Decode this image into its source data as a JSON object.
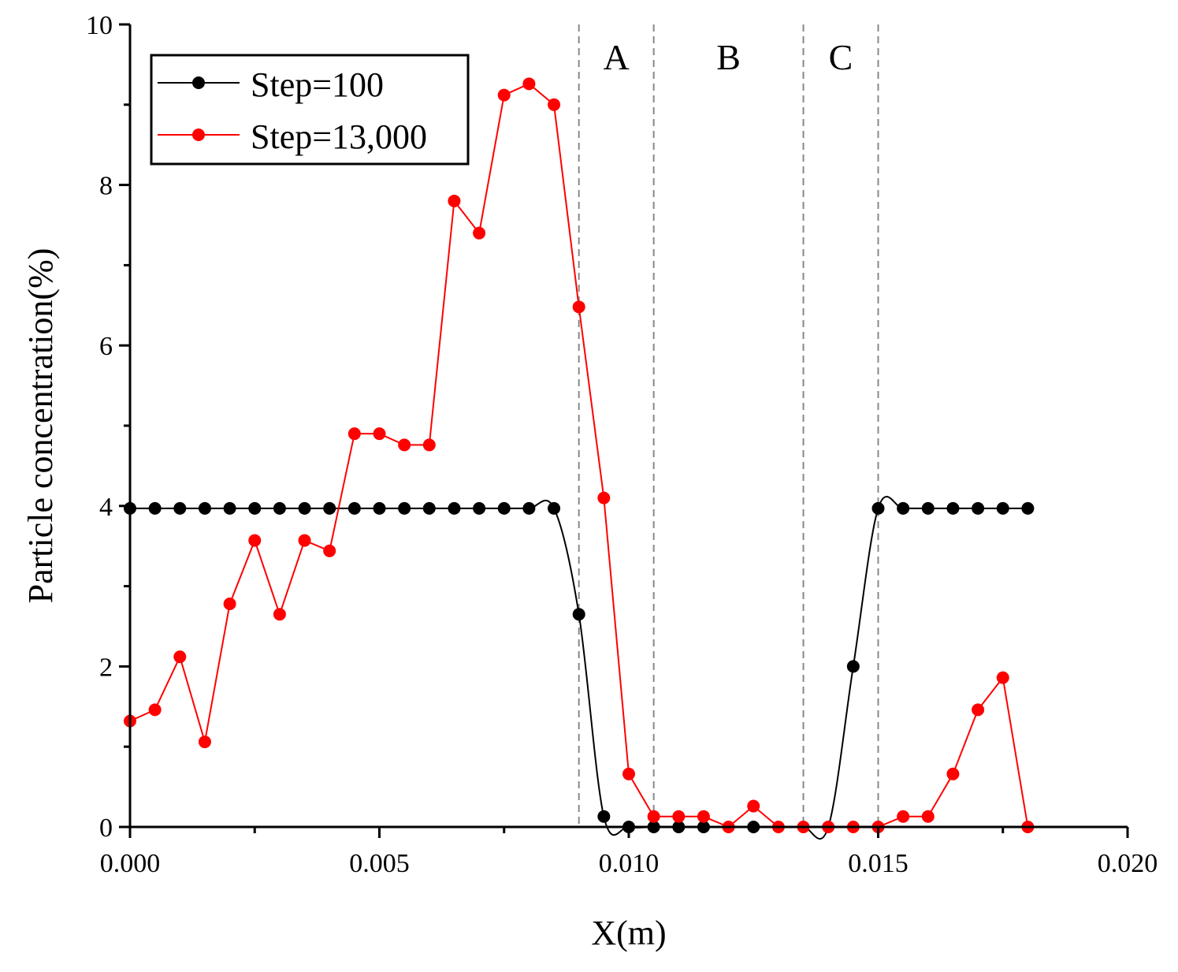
{
  "chart_data": {
    "type": "line",
    "xlabel": "X(m)",
    "ylabel": "Particle concentration(%)",
    "xlim": [
      0,
      0.02
    ],
    "ylim": [
      0,
      10
    ],
    "x_ticks": [
      {
        "value": 0.0,
        "label": "0.000"
      },
      {
        "value": 0.005,
        "label": "0.005"
      },
      {
        "value": 0.01,
        "label": "0.010"
      },
      {
        "value": 0.015,
        "label": "0.015"
      },
      {
        "value": 0.02,
        "label": "0.020"
      }
    ],
    "y_ticks": [
      {
        "value": 0,
        "label": "0"
      },
      {
        "value": 2,
        "label": "2"
      },
      {
        "value": 4,
        "label": "4"
      },
      {
        "value": 6,
        "label": "6"
      },
      {
        "value": 8,
        "label": "8"
      },
      {
        "value": 10,
        "label": "10"
      }
    ],
    "legend_position": "top-left",
    "regions": [
      {
        "label": "A",
        "start": 0.009,
        "end": 0.0105
      },
      {
        "label": "B",
        "start": 0.0105,
        "end": 0.0135
      },
      {
        "label": "C",
        "start": 0.0135,
        "end": 0.015
      }
    ],
    "series": [
      {
        "name": "Step=100",
        "color": "#000000",
        "smooth": true,
        "x": [
          0.0,
          0.0005,
          0.001,
          0.0015,
          0.002,
          0.0025,
          0.003,
          0.0035,
          0.004,
          0.0045,
          0.005,
          0.0055,
          0.006,
          0.0065,
          0.007,
          0.0075,
          0.008,
          0.0085,
          0.009,
          0.0095,
          0.01,
          0.0105,
          0.011,
          0.0115,
          0.012,
          0.0125,
          0.013,
          0.0135,
          0.014,
          0.0145,
          0.015,
          0.0155,
          0.016,
          0.0165,
          0.017,
          0.0175,
          0.018
        ],
        "y": [
          3.97,
          3.97,
          3.97,
          3.97,
          3.97,
          3.97,
          3.97,
          3.97,
          3.97,
          3.97,
          3.97,
          3.97,
          3.97,
          3.97,
          3.97,
          3.97,
          3.97,
          3.97,
          2.65,
          0.13,
          0.0,
          0.0,
          0.0,
          0.0,
          0.0,
          0.0,
          0.0,
          0.0,
          0.0,
          2.0,
          3.97,
          3.97,
          3.97,
          3.97,
          3.97,
          3.97,
          3.97
        ],
        "marker_x": [
          0.0,
          0.0005,
          0.001,
          0.0015,
          0.002,
          0.0025,
          0.003,
          0.0035,
          0.004,
          0.0045,
          0.005,
          0.0055,
          0.006,
          0.0065,
          0.007,
          0.0075,
          0.008,
          0.0085,
          0.009,
          0.0095,
          0.01,
          0.0105,
          0.011,
          0.0115,
          0.0125,
          0.0145,
          0.015,
          0.0155,
          0.016,
          0.0165,
          0.017,
          0.0175,
          0.018
        ],
        "marker_y": [
          3.97,
          3.97,
          3.97,
          3.97,
          3.97,
          3.97,
          3.97,
          3.97,
          3.97,
          3.97,
          3.97,
          3.97,
          3.97,
          3.97,
          3.97,
          3.97,
          3.97,
          3.97,
          2.65,
          0.13,
          0.0,
          0.0,
          0.0,
          0.0,
          0.0,
          2.0,
          3.97,
          3.97,
          3.97,
          3.97,
          3.97,
          3.97,
          3.97
        ]
      },
      {
        "name": "Step=13,000",
        "color": "#ff0000",
        "smooth": false,
        "x": [
          0.0,
          0.0005,
          0.001,
          0.0015,
          0.002,
          0.0025,
          0.003,
          0.0035,
          0.004,
          0.0045,
          0.005,
          0.0055,
          0.006,
          0.0065,
          0.007,
          0.0075,
          0.008,
          0.0085,
          0.009,
          0.0095,
          0.01,
          0.0105,
          0.011,
          0.0115,
          0.012,
          0.0125,
          0.013,
          0.0135,
          0.014,
          0.0145,
          0.015,
          0.0155,
          0.016,
          0.0165,
          0.017,
          0.0175,
          0.018
        ],
        "y": [
          1.32,
          1.46,
          2.12,
          1.06,
          2.78,
          3.57,
          2.65,
          3.57,
          3.44,
          4.9,
          4.9,
          4.76,
          4.76,
          7.8,
          7.4,
          9.12,
          9.26,
          9.0,
          6.48,
          4.1,
          0.66,
          0.13,
          0.13,
          0.13,
          0.0,
          0.26,
          0.0,
          0.0,
          0.0,
          0.0,
          0.0,
          0.13,
          0.13,
          0.66,
          1.46,
          1.86,
          0.0
        ]
      }
    ]
  }
}
